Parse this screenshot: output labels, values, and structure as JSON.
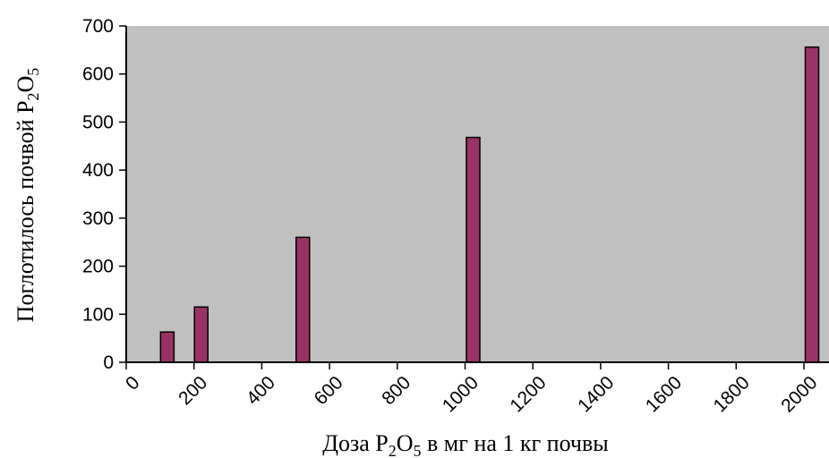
{
  "chart_data": {
    "type": "bar",
    "x": [
      100,
      200,
      500,
      1000,
      2000
    ],
    "values": [
      63,
      115,
      260,
      468,
      656
    ],
    "xlabel": "Доза P2O5 в мг на 1 кг почвы",
    "ylabel": "Поглотилось почвой P2O5",
    "x_ticks": [
      "0",
      "200",
      "400",
      "600",
      "800",
      "1000",
      "1200",
      "1400",
      "1600",
      "1800",
      "2000"
    ],
    "y_ticks": [
      "0",
      "100",
      "200",
      "300",
      "400",
      "500",
      "600",
      "700"
    ],
    "xlim": [
      0,
      2000
    ],
    "ylim": [
      0,
      700
    ],
    "plot_background": "#c0c0c0",
    "bar_color": "#993366",
    "bar_border": "#000000",
    "grid": false
  }
}
